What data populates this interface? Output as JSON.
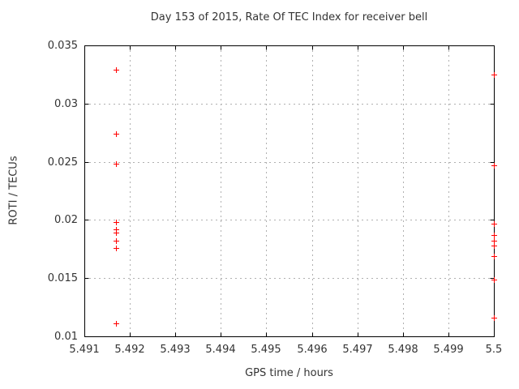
{
  "chart_data": {
    "type": "scatter",
    "title": "Day 153 of 2015, Rate Of TEC Index for receiver bell",
    "xlabel": "GPS time / hours",
    "ylabel": "ROTI / TECUs",
    "xlim": [
      5.491,
      5.5
    ],
    "ylim": [
      0.01,
      0.035
    ],
    "xticks": {
      "values": [
        5.491,
        5.492,
        5.493,
        5.494,
        5.495,
        5.496,
        5.497,
        5.498,
        5.499,
        5.5
      ],
      "labels": [
        "5.491",
        "5.492",
        "5.493",
        "5.494",
        "5.495",
        "5.496",
        "5.497",
        "5.498",
        "5.499",
        "5.5"
      ]
    },
    "yticks": {
      "values": [
        0.01,
        0.015,
        0.02,
        0.025,
        0.03,
        0.035
      ],
      "labels": [
        "0.01",
        "0.015",
        "0.02",
        "0.025",
        "0.03",
        "0.035"
      ]
    },
    "grid": true,
    "legend_position": "none",
    "grid_color": "#b0b0b0",
    "axis_color": "#000000",
    "text_color": "#333333",
    "marker": {
      "shape": "plus",
      "color": "#ff0000",
      "size": 7
    },
    "series": [
      {
        "name": "ROTI",
        "points": [
          [
            5.4917,
            0.0329
          ],
          [
            5.4917,
            0.0274
          ],
          [
            5.4917,
            0.0248
          ],
          [
            5.4917,
            0.0198
          ],
          [
            5.4917,
            0.0192
          ],
          [
            5.4917,
            0.0189
          ],
          [
            5.4917,
            0.0182
          ],
          [
            5.4917,
            0.0176
          ],
          [
            5.4917,
            0.0111
          ],
          [
            5.5,
            0.0325
          ],
          [
            5.5,
            0.0247
          ],
          [
            5.5,
            0.0197
          ],
          [
            5.5,
            0.0187
          ],
          [
            5.5,
            0.0182
          ],
          [
            5.5,
            0.0178
          ],
          [
            5.5,
            0.0169
          ],
          [
            5.5,
            0.0149
          ],
          [
            5.5,
            0.0116
          ]
        ]
      }
    ]
  }
}
